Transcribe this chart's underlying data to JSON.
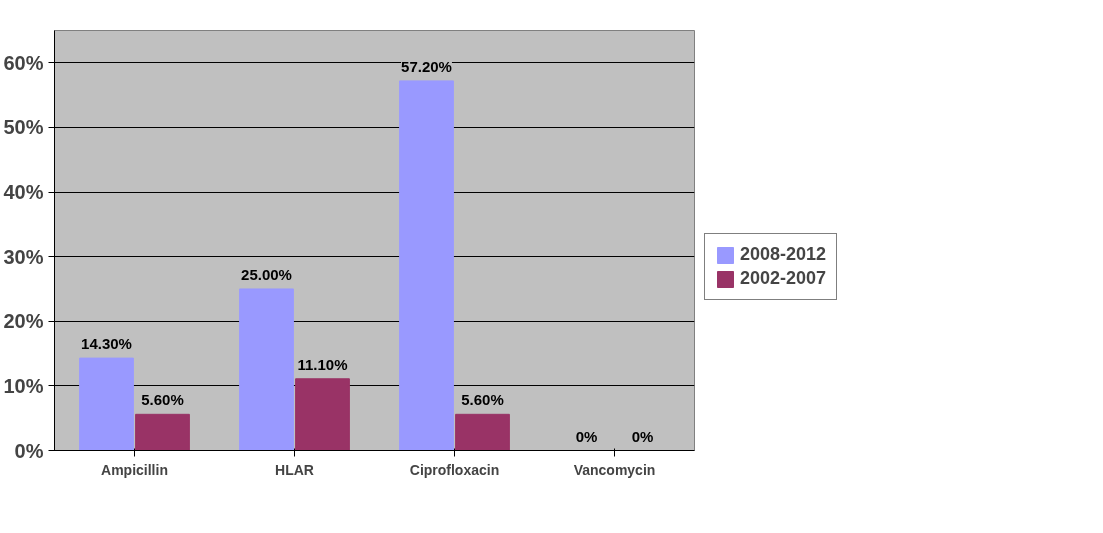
{
  "chart_data": {
    "type": "bar",
    "categories": [
      "Ampicillin",
      "HLAR",
      "Ciprofloxacin",
      "Vancomycin"
    ],
    "series": [
      {
        "name": "2008-2012",
        "color": "#9999ff",
        "values": [
          14.3,
          25.0,
          57.2,
          0
        ],
        "value_labels": [
          "14.30%",
          "25.00%",
          "57.20%",
          "0%"
        ]
      },
      {
        "name": "2002-2007",
        "color": "#993366",
        "values": [
          5.6,
          11.1,
          5.6,
          0
        ],
        "value_labels": [
          "5.60%",
          "11.10%",
          "5.60%",
          "0%"
        ]
      }
    ],
    "ylim": [
      0,
      65
    ],
    "yticks": [
      {
        "value": 0,
        "label": "0%"
      },
      {
        "value": 10,
        "label": "10%"
      },
      {
        "value": 20,
        "label": "20%"
      },
      {
        "value": 30,
        "label": "30%"
      },
      {
        "value": 40,
        "label": "40%"
      },
      {
        "value": 50,
        "label": "50%"
      },
      {
        "value": 60,
        "label": "60%"
      }
    ],
    "grid": "y",
    "legend": "right"
  }
}
